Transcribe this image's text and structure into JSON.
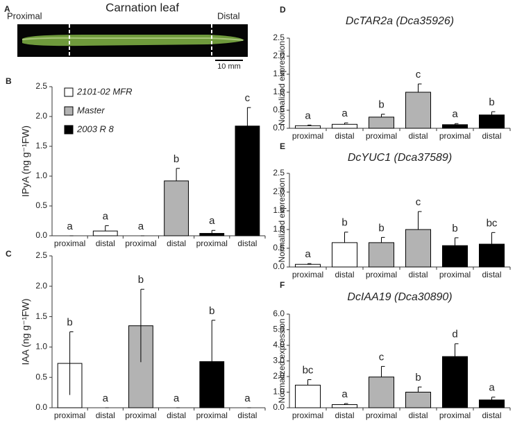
{
  "photo": {
    "letter": "A",
    "title": "Carnation leaf",
    "labels": [
      "Proximal",
      "Distal"
    ],
    "scale": "10 mm"
  },
  "chart_data": [
    {
      "type": "bar",
      "letter": "B",
      "ylabel": "IPyA (ng g⁻¹FW)",
      "categories": [
        "proximal",
        "distal",
        "proximal",
        "distal",
        "proximal",
        "distal"
      ],
      "values": [
        0,
        0.08,
        0,
        0.92,
        0.04,
        1.84
      ],
      "errors": [
        0,
        0.09,
        0,
        0.21,
        0.05,
        0.31
      ],
      "error_bars": "up",
      "annotations": [
        "a",
        "a",
        "a",
        "b",
        "a",
        "c"
      ],
      "colors": [
        "#ffffff",
        "#ffffff",
        "#b3b3b3",
        "#b3b3b3",
        "#000000",
        "#000000"
      ],
      "legend": [
        {
          "name": "2101-02 MFR",
          "color": "#ffffff"
        },
        {
          "name": "Master",
          "color": "#b3b3b3"
        },
        {
          "name": "2003 R 8",
          "color": "#000000"
        }
      ],
      "ylim": [
        0,
        2.5
      ],
      "yticks": [
        {
          "value": 0,
          "label": "0.0"
        },
        0.5,
        {
          "value": 1,
          "label": "1.0"
        },
        1.5,
        {
          "value": 2,
          "label": "2.0"
        },
        2.5
      ]
    },
    {
      "type": "bar",
      "letter": "C",
      "ylabel": "IAA (ng g⁻¹FW)",
      "categories": [
        "proximal",
        "distal",
        "proximal",
        "distal",
        "proximal",
        "distal"
      ],
      "values": [
        0.73,
        0,
        1.35,
        0,
        0.76,
        0
      ],
      "errors": [
        0.52,
        0,
        0.6,
        0,
        0.68,
        0
      ],
      "error_bars": "both",
      "annotations": [
        "b",
        "a",
        "b",
        "a",
        "b",
        "a"
      ],
      "colors": [
        "#ffffff",
        "#ffffff",
        "#b3b3b3",
        "#b3b3b3",
        "#000000",
        "#000000"
      ],
      "ylim": [
        0,
        2.5
      ],
      "yticks": [
        {
          "value": 0,
          "label": "0.0"
        },
        0.5,
        {
          "value": 1,
          "label": "1.0"
        },
        1.5,
        {
          "value": 2,
          "label": "2.0"
        },
        2.5
      ]
    },
    {
      "type": "bar",
      "letter": "D",
      "title": "DcTAR2a (Dca35926)",
      "ylabel": "Normalized expression",
      "categories": [
        "proximal",
        "distal",
        "proximal",
        "distal",
        "proximal",
        "distal"
      ],
      "values": [
        0.07,
        0.11,
        0.31,
        1.0,
        0.1,
        0.37
      ],
      "errors": [
        0.02,
        0.04,
        0.08,
        0.23,
        0.03,
        0.09
      ],
      "error_bars": "up",
      "annotations": [
        "a",
        "a",
        "b",
        "c",
        "a",
        "b"
      ],
      "colors": [
        "#ffffff",
        "#ffffff",
        "#b3b3b3",
        "#b3b3b3",
        "#000000",
        "#000000"
      ],
      "ylim": [
        0,
        2.5
      ],
      "yticks": [
        {
          "value": 0,
          "label": "0.0"
        },
        0.5,
        {
          "value": 1,
          "label": "1.0"
        },
        1.5,
        {
          "value": 2,
          "label": "2.0"
        },
        2.5
      ]
    },
    {
      "type": "bar",
      "letter": "E",
      "title": "DcYUC1 (Dca37589)",
      "ylabel": "Normalized expression",
      "categories": [
        "proximal",
        "distal",
        "proximal",
        "distal",
        "proximal",
        "distal"
      ],
      "values": [
        0.07,
        0.65,
        0.65,
        1.0,
        0.57,
        0.61
      ],
      "errors": [
        0.02,
        0.28,
        0.14,
        0.48,
        0.21,
        0.31
      ],
      "error_bars": "up",
      "annotations": [
        "a",
        "b",
        "b",
        "c",
        "b",
        "bc"
      ],
      "colors": [
        "#ffffff",
        "#ffffff",
        "#b3b3b3",
        "#b3b3b3",
        "#000000",
        "#000000"
      ],
      "ylim": [
        0,
        2.5
      ],
      "yticks": [
        {
          "value": 0,
          "label": "0.0"
        },
        0.5,
        {
          "value": 1,
          "label": "1.0"
        },
        1.5,
        {
          "value": 2,
          "label": "2.0"
        },
        2.5
      ]
    },
    {
      "type": "bar",
      "letter": "F",
      "title": "DcIAA19 (Dca30890)",
      "ylabel": "Normalized expression",
      "categories": [
        "proximal",
        "distal",
        "proximal",
        "distal",
        "proximal",
        "distal"
      ],
      "values": [
        1.45,
        0.2,
        1.97,
        1.0,
        3.28,
        0.5
      ],
      "errors": [
        0.35,
        0.07,
        0.68,
        0.33,
        0.82,
        0.18
      ],
      "error_bars": "up",
      "annotations": [
        "bc",
        "a",
        "c",
        "b",
        "d",
        "a"
      ],
      "colors": [
        "#ffffff",
        "#ffffff",
        "#b3b3b3",
        "#b3b3b3",
        "#000000",
        "#000000"
      ],
      "ylim": [
        0,
        6
      ],
      "yticks": [
        {
          "value": 0,
          "label": "0.0"
        },
        {
          "value": 1,
          "label": "1.0"
        },
        {
          "value": 2,
          "label": "2.0"
        },
        {
          "value": 3,
          "label": "3.0"
        },
        {
          "value": 4,
          "label": "4.0"
        },
        {
          "value": 5,
          "label": "5.0"
        },
        {
          "value": 6,
          "label": "6.0"
        }
      ]
    }
  ]
}
